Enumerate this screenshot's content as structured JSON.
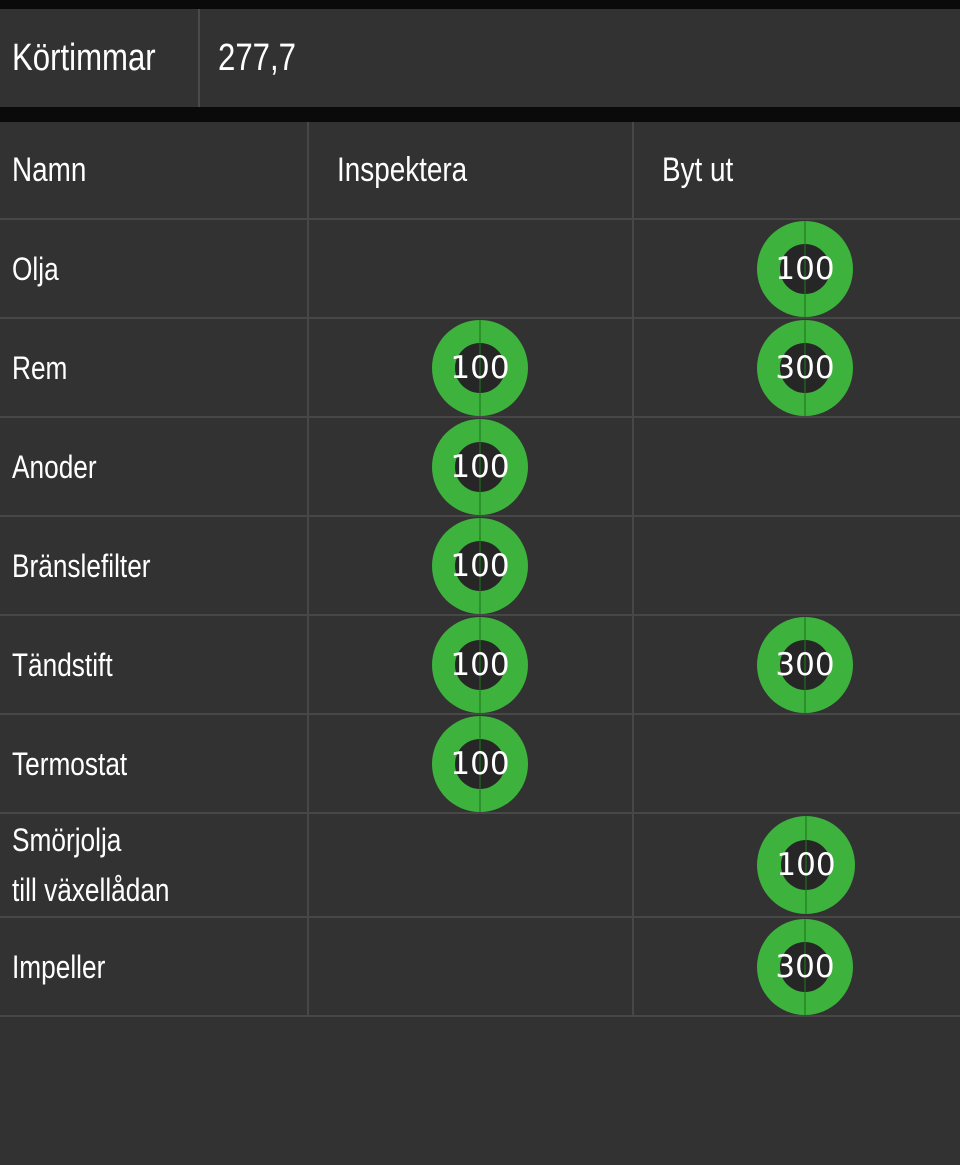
{
  "hours": {
    "label": "Körtimmar",
    "value": "277,7"
  },
  "table": {
    "headers": {
      "name": "Namn",
      "inspect": "Inspektera",
      "replace": "Byt ut"
    },
    "rows": [
      {
        "name": "Olja",
        "inspect": null,
        "replace": "100"
      },
      {
        "name": "Rem",
        "inspect": "100",
        "replace": "300"
      },
      {
        "name": "Anoder",
        "inspect": "100",
        "replace": null
      },
      {
        "name": "Bränslefilter",
        "inspect": "100",
        "replace": null
      },
      {
        "name": "Tändstift",
        "inspect": "100",
        "replace": "300"
      },
      {
        "name": "Termostat",
        "inspect": "100",
        "replace": null
      },
      {
        "name_line1": "Smörjolja",
        "name_line2": "till växellådan",
        "inspect": null,
        "replace": "100"
      },
      {
        "name": "Impeller",
        "inspect": null,
        "replace": "300"
      }
    ]
  },
  "colors": {
    "badge_ring": "#3db23d",
    "background": "#323232",
    "grid_line": "#474747"
  }
}
